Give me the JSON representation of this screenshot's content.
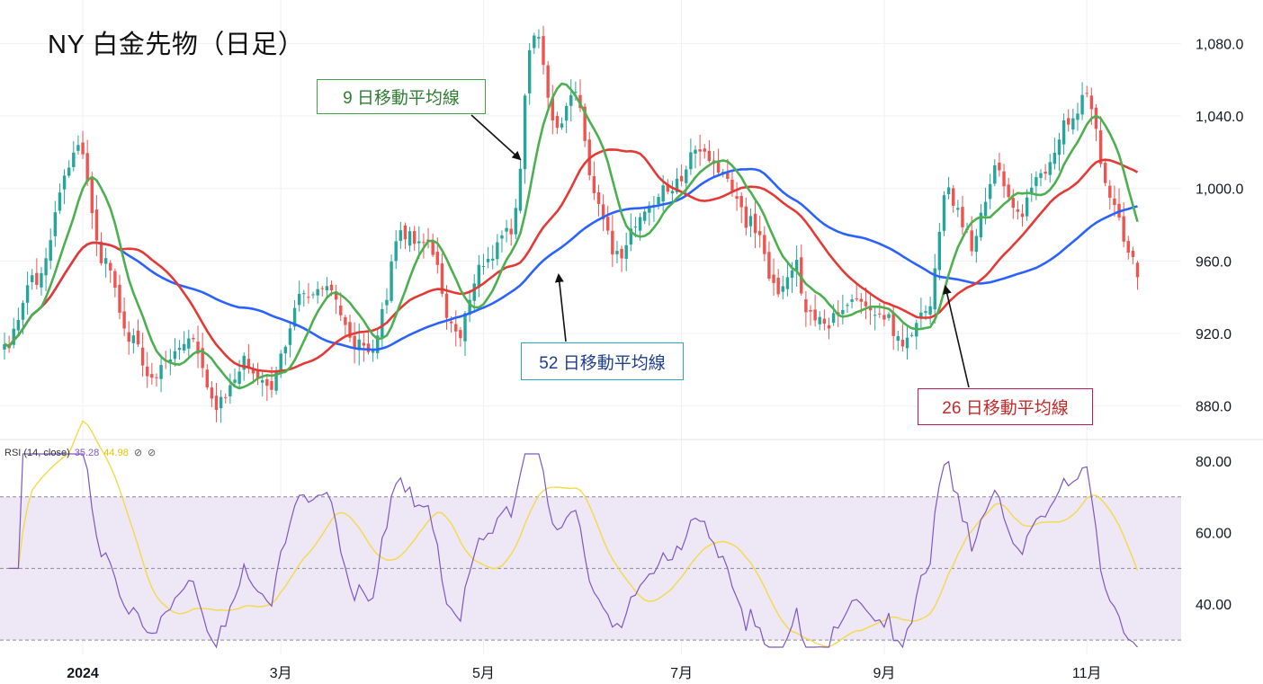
{
  "title": "NY 白金先物（日足）",
  "annotations": {
    "ma9": "9 日移動平均線",
    "ma52": "52 日移動平均線",
    "ma26": "26 日移動平均線"
  },
  "rsi_legend": {
    "label": "RSI (14, close)",
    "rsi_value": "35.28",
    "ma_value": "44.98",
    "icon1": "⊘",
    "icon2": "⊘"
  },
  "colors": {
    "up": "#26a69a",
    "down": "#ef5350",
    "ma9": "#4caf50",
    "ma26": "#e53935",
    "ma52": "#2962ff",
    "rsi": "#7e57c2",
    "rsi_ma": "#f5d94a",
    "rsi_band": "#ede7f6"
  },
  "chart_data": [
    {
      "type": "candlestick",
      "title": "NY 白金先物（日足）",
      "price_axis_ticks": [
        "1,080.0",
        "1,040.0",
        "1,000.0",
        "960.0",
        "920.0",
        "880.0"
      ],
      "price_axis_values": [
        1080,
        1040,
        1000,
        960,
        920,
        880
      ],
      "ylim": [
        862,
        1104
      ],
      "x_tick_labels": [
        "2024",
        "3月",
        "5月",
        "7月",
        "9月",
        "11月"
      ],
      "x_tick_index": [
        17,
        60,
        104,
        147,
        191,
        235
      ],
      "num_bars": 247,
      "anchors": [
        [
          0,
          910
        ],
        [
          6,
          948
        ],
        [
          16,
          1020
        ],
        [
          22,
          958
        ],
        [
          27,
          920
        ],
        [
          32,
          897
        ],
        [
          40,
          918
        ],
        [
          46,
          880
        ],
        [
          52,
          903
        ],
        [
          58,
          892
        ],
        [
          64,
          938
        ],
        [
          70,
          945
        ],
        [
          76,
          912
        ],
        [
          80,
          912
        ],
        [
          86,
          975
        ],
        [
          92,
          968
        ],
        [
          98,
          920
        ],
        [
          104,
          958
        ],
        [
          110,
          978
        ],
        [
          115,
          1085
        ],
        [
          120,
          1035
        ],
        [
          124,
          1055
        ],
        [
          128,
          995
        ],
        [
          133,
          963
        ],
        [
          138,
          982
        ],
        [
          144,
          998
        ],
        [
          150,
          1018
        ],
        [
          156,
          1008
        ],
        [
          162,
          980
        ],
        [
          168,
          942
        ],
        [
          172,
          960
        ],
        [
          174,
          930
        ],
        [
          178,
          925
        ],
        [
          185,
          940
        ],
        [
          190,
          930
        ],
        [
          196,
          916
        ],
        [
          200,
          935
        ],
        [
          205,
          998
        ],
        [
          210,
          970
        ],
        [
          215,
          1010
        ],
        [
          220,
          987
        ],
        [
          226,
          1010
        ],
        [
          231,
          1040
        ],
        [
          235,
          1050
        ],
        [
          240,
          995
        ],
        [
          244,
          965
        ],
        [
          247,
          943
        ]
      ],
      "series": [
        {
          "name": "9 日移動平均線",
          "period": 9,
          "color": "#4caf50"
        },
        {
          "name": "26 日移動平均線",
          "period": 26,
          "color": "#e53935"
        },
        {
          "name": "52 日移動平均線",
          "period": 52,
          "color": "#2962ff"
        }
      ]
    },
    {
      "type": "line",
      "title": "RSI (14, close)",
      "y_axis_ticks": [
        "80.00",
        "60.00",
        "40.00"
      ],
      "y_axis_values": [
        80,
        60,
        40
      ],
      "ylim": [
        26,
        84
      ],
      "levels": [
        70,
        50,
        30
      ],
      "rsi_period": 14,
      "rsi_ma_period": 14,
      "last_rsi": 35.28,
      "last_rsi_ma": 44.98
    }
  ]
}
